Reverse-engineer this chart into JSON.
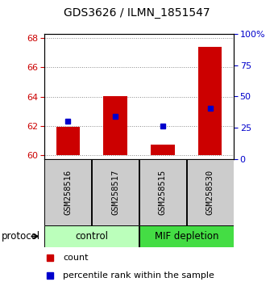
{
  "title": "GDS3626 / ILMN_1851547",
  "samples": [
    "GSM258516",
    "GSM258517",
    "GSM258515",
    "GSM258530"
  ],
  "bar_tops": [
    61.9,
    64.05,
    60.7,
    67.4
  ],
  "bar_base": 60.0,
  "percentile_values": [
    62.3,
    62.65,
    62.0,
    63.2
  ],
  "ylim_left": [
    59.7,
    68.3
  ],
  "ylim_right": [
    0,
    100
  ],
  "yticks_left": [
    60,
    62,
    64,
    66,
    68
  ],
  "yticks_right": [
    0,
    25,
    50,
    75,
    100
  ],
  "ytick_labels_right": [
    "0",
    "25",
    "50",
    "75",
    "100%"
  ],
  "bar_color": "#cc0000",
  "blue_color": "#0000cc",
  "group_labels": [
    "control",
    "MIF depletion"
  ],
  "group_ranges": [
    [
      0,
      2
    ],
    [
      2,
      4
    ]
  ],
  "group_colors_hex": [
    "#bbffbb",
    "#44dd44"
  ],
  "sample_box_color": "#cccccc",
  "dotted_color": "#888888",
  "bar_width": 0.5
}
